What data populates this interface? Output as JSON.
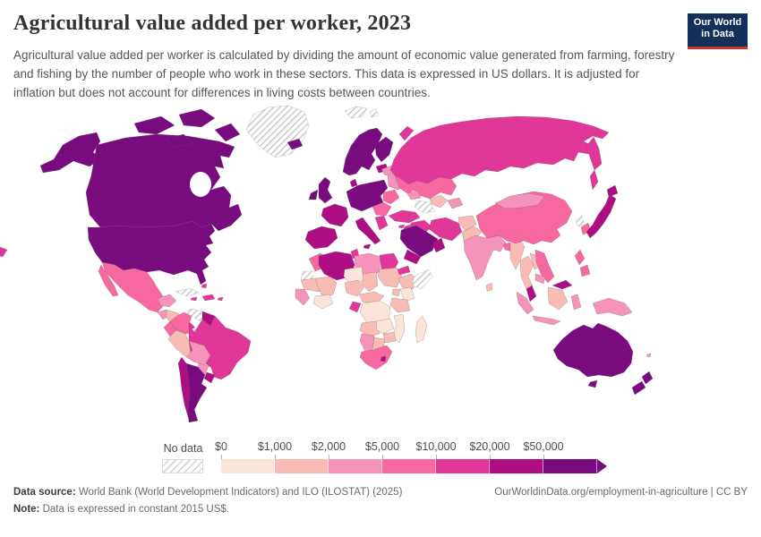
{
  "header": {
    "title": "Agricultural value added per worker, 2023",
    "logo_line1": "Our World",
    "logo_line2": "in Data"
  },
  "subtitle": "Agricultural value added per worker is calculated by dividing the amount of economic value generated from farming, forestry and fishing by the number of people who work in these sectors. This data is expressed in US dollars. It is adjusted for inflation but does not account for differences in living costs between countries.",
  "legend": {
    "no_data_label": "No data",
    "tick_labels": [
      "$0",
      "$1,000",
      "$2,000",
      "$5,000",
      "$10,000",
      "$20,000",
      "$50,000"
    ],
    "bin_order": [
      "b1",
      "b2",
      "b3",
      "b4",
      "b5",
      "b6",
      "b7"
    ],
    "bin_ranges": [
      "$0-$1,000",
      "$1,000-$2,000",
      "$2,000-$5,000",
      "$5,000-$10,000",
      "$10,000-$20,000",
      "$20,000-$50,000",
      "$50,000+"
    ]
  },
  "map": {
    "bin_colors": {
      "b1": "#fbe4da",
      "b2": "#f9bcb5",
      "b3": "#f693ba",
      "b4": "#f768a1",
      "b5": "#e03798",
      "b6": "#ad0e84",
      "b7": "#780c7f"
    },
    "no_data_key": "nd",
    "regions": {
      "alaska": "b7",
      "canada": "b7",
      "arctic-islands-1": "b7",
      "arctic-islands-2": "b7",
      "arctic-islands-3": "b7",
      "arctic-islands-4": "b7",
      "usa": "b7",
      "greenland": "nd",
      "iceland": "b7",
      "mexico": "b4",
      "baja": "b4",
      "yucatan": "b3",
      "guatemala": "b3",
      "honduras-nicaragua": "b2",
      "costa-rica-panama": "b5",
      "cuba": "nd",
      "bahamas": "b5",
      "hispaniola": "b5",
      "jamaica": "b5",
      "puerto-rico": "b5",
      "colombia": "b4",
      "venezuela": "nd",
      "guyana": "b6",
      "ecuador": "b4",
      "peru": "b2",
      "brazil": "b5",
      "bolivia": "b3",
      "paraguay": "b3",
      "chile": "b6",
      "argentina": "b7",
      "uruguay": "b6",
      "left-fragment": "b5",
      "uk": "b7",
      "ireland": "b7",
      "scandinavia": "b7",
      "finland": "b7",
      "baltics": "b6",
      "denmark": "b6",
      "france": "b6",
      "iberia": "b6",
      "central-europe": "b7",
      "italy": "b6",
      "balkans": "b4",
      "greece": "b5",
      "romania": "b4",
      "ukraine": "b3",
      "belarus": "b3",
      "russia": "b5",
      "novaya-zemlya": "b5",
      "kamchatka": "b5",
      "sakhalin": "b5",
      "svalbard": "nd",
      "kazakhstan": "b4",
      "uzbekistan": "b2",
      "turkmenistan": "nd",
      "kyrgyz-tajik": "b3",
      "caucasus": "b3",
      "turkey": "b5",
      "cyprus": "b5",
      "syria-iraq": "b5",
      "jordan-israel": "b5",
      "iran": "b5",
      "afghanistan": "b2",
      "pakistan": "b2",
      "saudi-arabia": "b7",
      "yemen": "b6",
      "oman": "b6",
      "india": "b3",
      "sri-lanka": "b2",
      "nepal": "b2",
      "bangladesh": "b4",
      "myanmar": "b2",
      "china": "b4",
      "mongolia": "b3",
      "north-korea": "nd",
      "south-korea": "b4",
      "japan": "b6",
      "hokkaido": "b6",
      "thailand": "b2",
      "laos": "b2",
      "vietnam": "b4",
      "cambodia": "b3",
      "malaysia-peninsula": "b6",
      "malaysia-borneo": "b6",
      "philippines": "b4",
      "sumatra": "b3",
      "java": "b3",
      "borneo": "b2",
      "sulawesi": "b3",
      "new-guinea": "b3",
      "morocco": "b4",
      "western-sahara": "nd",
      "mauritania": "b2",
      "mali": "b2",
      "senegal-guinea": "b3",
      "algeria": "b6",
      "tunisia": "b5",
      "libya": "b3",
      "egypt": "b5",
      "sudan": "b2",
      "chad": "b2",
      "niger": "b1",
      "nigeria": "b2",
      "ghana-ivory": "b1",
      "cameroon-car": "b2",
      "gabon-congo": "b5",
      "drc": "b1",
      "ethiopia": "b2",
      "eritrea": "b5",
      "somalia": "nd",
      "kenya": "b1",
      "uganda": "b2",
      "tanzania": "b2",
      "angola": "b2",
      "zambia": "b1",
      "mozambique": "b1",
      "zimbabwe": "b2",
      "botswana": "b2",
      "namibia": "b3",
      "south-africa": "b4",
      "lesotho": "b6",
      "madagascar": "b1",
      "australia": "b7",
      "tasmania": "b7",
      "nz-north": "b7",
      "nz-south": "b7",
      "fiji": "b3"
    }
  },
  "footer": {
    "source_label": "Data source:",
    "source_text": " World Bank (World Development Indicators) and ILO (ILOSTAT) (2025)",
    "link_text": "OurWorldinData.org/employment-in-agriculture | CC BY",
    "note_label": "Note:",
    "note_text": " Data is expressed in constant 2015 US$."
  }
}
